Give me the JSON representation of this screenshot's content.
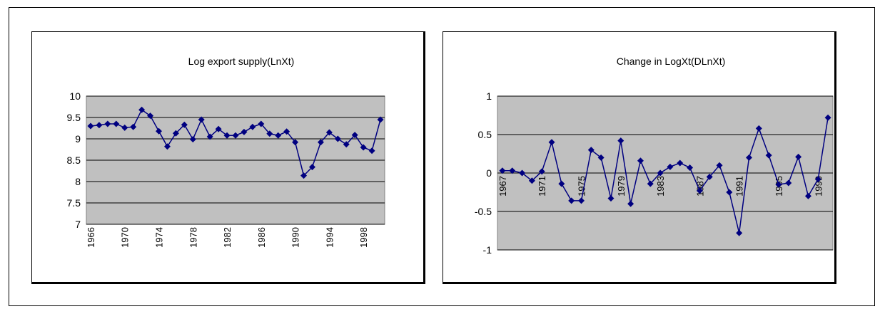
{
  "chart_data": [
    {
      "type": "line",
      "title": "Log export supply(LnXt)",
      "x": [
        1966,
        1967,
        1968,
        1969,
        1970,
        1971,
        1972,
        1973,
        1974,
        1975,
        1976,
        1977,
        1978,
        1979,
        1980,
        1981,
        1982,
        1983,
        1984,
        1985,
        1986,
        1987,
        1988,
        1989,
        1990,
        1991,
        1992,
        1993,
        1994,
        1995,
        1996,
        1997,
        1998,
        1999,
        2000
      ],
      "values": [
        9.3,
        9.32,
        9.35,
        9.35,
        9.26,
        9.28,
        9.68,
        9.54,
        9.18,
        8.82,
        9.13,
        9.33,
        8.99,
        9.45,
        9.05,
        9.23,
        9.08,
        9.08,
        9.16,
        9.28,
        9.35,
        9.12,
        9.08,
        9.17,
        8.92,
        8.14,
        8.34,
        8.92,
        9.15,
        9.0,
        8.87,
        9.09,
        8.8,
        8.72,
        9.45
      ],
      "ylim": [
        7,
        10
      ],
      "yticks": [
        "10",
        "9.5",
        "9",
        "8.5",
        "8",
        "7.5",
        "7"
      ],
      "xticks": [
        "1966",
        "1970",
        "1974",
        "1978",
        "1982",
        "1986",
        "1990",
        "1994",
        "1998"
      ],
      "grid": true,
      "line_color": "#000080",
      "plot_bg": "#c0c0c0"
    },
    {
      "type": "line",
      "title": "Change in LogXt(DLnXt)",
      "x": [
        1967,
        1968,
        1969,
        1970,
        1971,
        1972,
        1973,
        1974,
        1975,
        1976,
        1977,
        1978,
        1979,
        1980,
        1981,
        1982,
        1983,
        1984,
        1985,
        1986,
        1987,
        1988,
        1989,
        1990,
        1991,
        1992,
        1993,
        1994,
        1995,
        1996,
        1997,
        1998,
        1999,
        2000
      ],
      "values": [
        0.03,
        0.03,
        0.0,
        -0.1,
        0.02,
        0.4,
        -0.14,
        -0.36,
        -0.36,
        0.3,
        0.2,
        -0.33,
        0.42,
        -0.4,
        0.16,
        -0.14,
        0.0,
        0.08,
        0.13,
        0.07,
        -0.23,
        -0.05,
        0.1,
        -0.25,
        -0.78,
        0.2,
        0.58,
        0.23,
        -0.15,
        -0.13,
        0.21,
        -0.3,
        -0.08,
        0.72
      ],
      "ylim": [
        -1,
        1
      ],
      "yticks": [
        "1",
        "0.5",
        "0",
        "-0.5",
        "-1"
      ],
      "xticks": [
        "1967",
        "1971",
        "1975",
        "1979",
        "1983",
        "1987",
        "1991",
        "1995",
        "1999"
      ],
      "grid": true,
      "line_color": "#000080",
      "plot_bg": "#c0c0c0"
    }
  ]
}
